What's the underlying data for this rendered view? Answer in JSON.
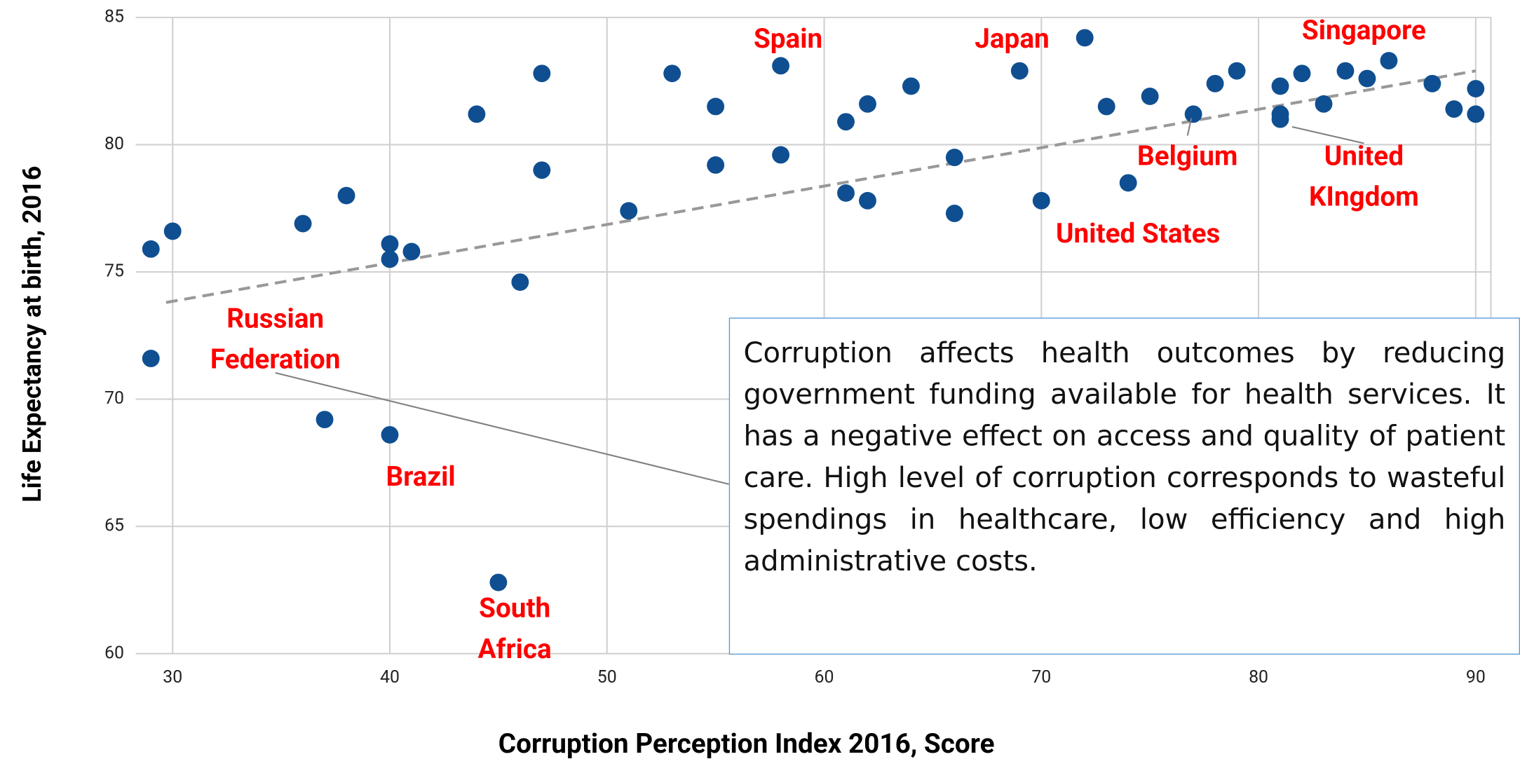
{
  "chart_data": {
    "type": "scatter",
    "xlabel": "Corruption Perception Index 2016, Score",
    "ylabel": "Life Expectancy at birth, 2016",
    "color": "#0f4f91",
    "grid": true,
    "xlim": [
      28.3,
      90.7
    ],
    "ylim": [
      60,
      85
    ],
    "xticks": [
      30,
      40,
      50,
      60,
      70,
      80,
      90
    ],
    "yticks": [
      60,
      65,
      70,
      75,
      80,
      85
    ],
    "x": [
      29,
      30,
      29,
      36,
      38,
      37,
      40,
      40,
      41,
      40,
      44,
      46,
      47,
      47,
      45,
      51,
      53,
      55,
      55,
      58,
      58,
      61,
      62,
      61,
      62,
      64,
      66,
      66,
      69,
      70,
      72,
      73,
      75,
      74,
      77,
      78,
      79,
      81,
      81,
      81,
      82,
      83,
      84,
      85,
      86,
      88,
      89,
      90,
      90
    ],
    "values": [
      75.9,
      76.6,
      71.6,
      76.9,
      78.0,
      69.2,
      76.1,
      75.5,
      75.8,
      68.6,
      81.2,
      74.6,
      82.8,
      79.0,
      62.8,
      77.4,
      82.8,
      81.5,
      79.2,
      83.1,
      79.6,
      80.9,
      81.6,
      78.1,
      77.8,
      82.3,
      79.5,
      77.3,
      82.9,
      77.8,
      84.2,
      81.5,
      81.9,
      78.5,
      81.2,
      82.4,
      82.9,
      82.3,
      81.2,
      81.0,
      82.8,
      81.6,
      82.9,
      82.6,
      83.3,
      82.4,
      81.4,
      82.2,
      81.2
    ],
    "trendline": {
      "color": "#999999",
      "x": [
        29.7,
        90
      ],
      "values": [
        73.8,
        82.9
      ]
    },
    "annotations": [
      {
        "text": [
          "Spain"
        ]
      },
      {
        "text": [
          "Japan"
        ]
      },
      {
        "text": [
          "Singapore"
        ]
      },
      {
        "text": [
          "Belgium"
        ]
      },
      {
        "text": [
          "United",
          "KIngdom"
        ]
      },
      {
        "text": [
          "United States"
        ]
      },
      {
        "text": [
          "Russian",
          "Federation"
        ]
      },
      {
        "text": [
          "Brazil"
        ]
      },
      {
        "text": [
          "South",
          "Africa"
        ]
      }
    ],
    "note": "Corruption affects health outcomes by reducing government funding available for health services. It has a negative effect on access and quality of patient care. High level of corruption corresponds to wasteful spendings in healthcare, low efficiency and high administrative costs."
  }
}
